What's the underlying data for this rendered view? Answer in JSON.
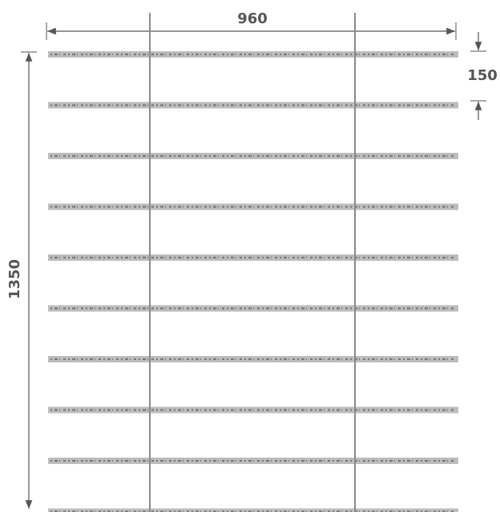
{
  "drawing": {
    "width_label": "960",
    "height_label": "1350",
    "spacing_label": "150",
    "colors": {
      "dimension": "#555555",
      "strip": "#bdbdbd",
      "strip_dots": "#7a7a7a",
      "post": "#8a8a8a"
    }
  },
  "grid": {
    "strip_count": 10,
    "post_count": 2
  }
}
